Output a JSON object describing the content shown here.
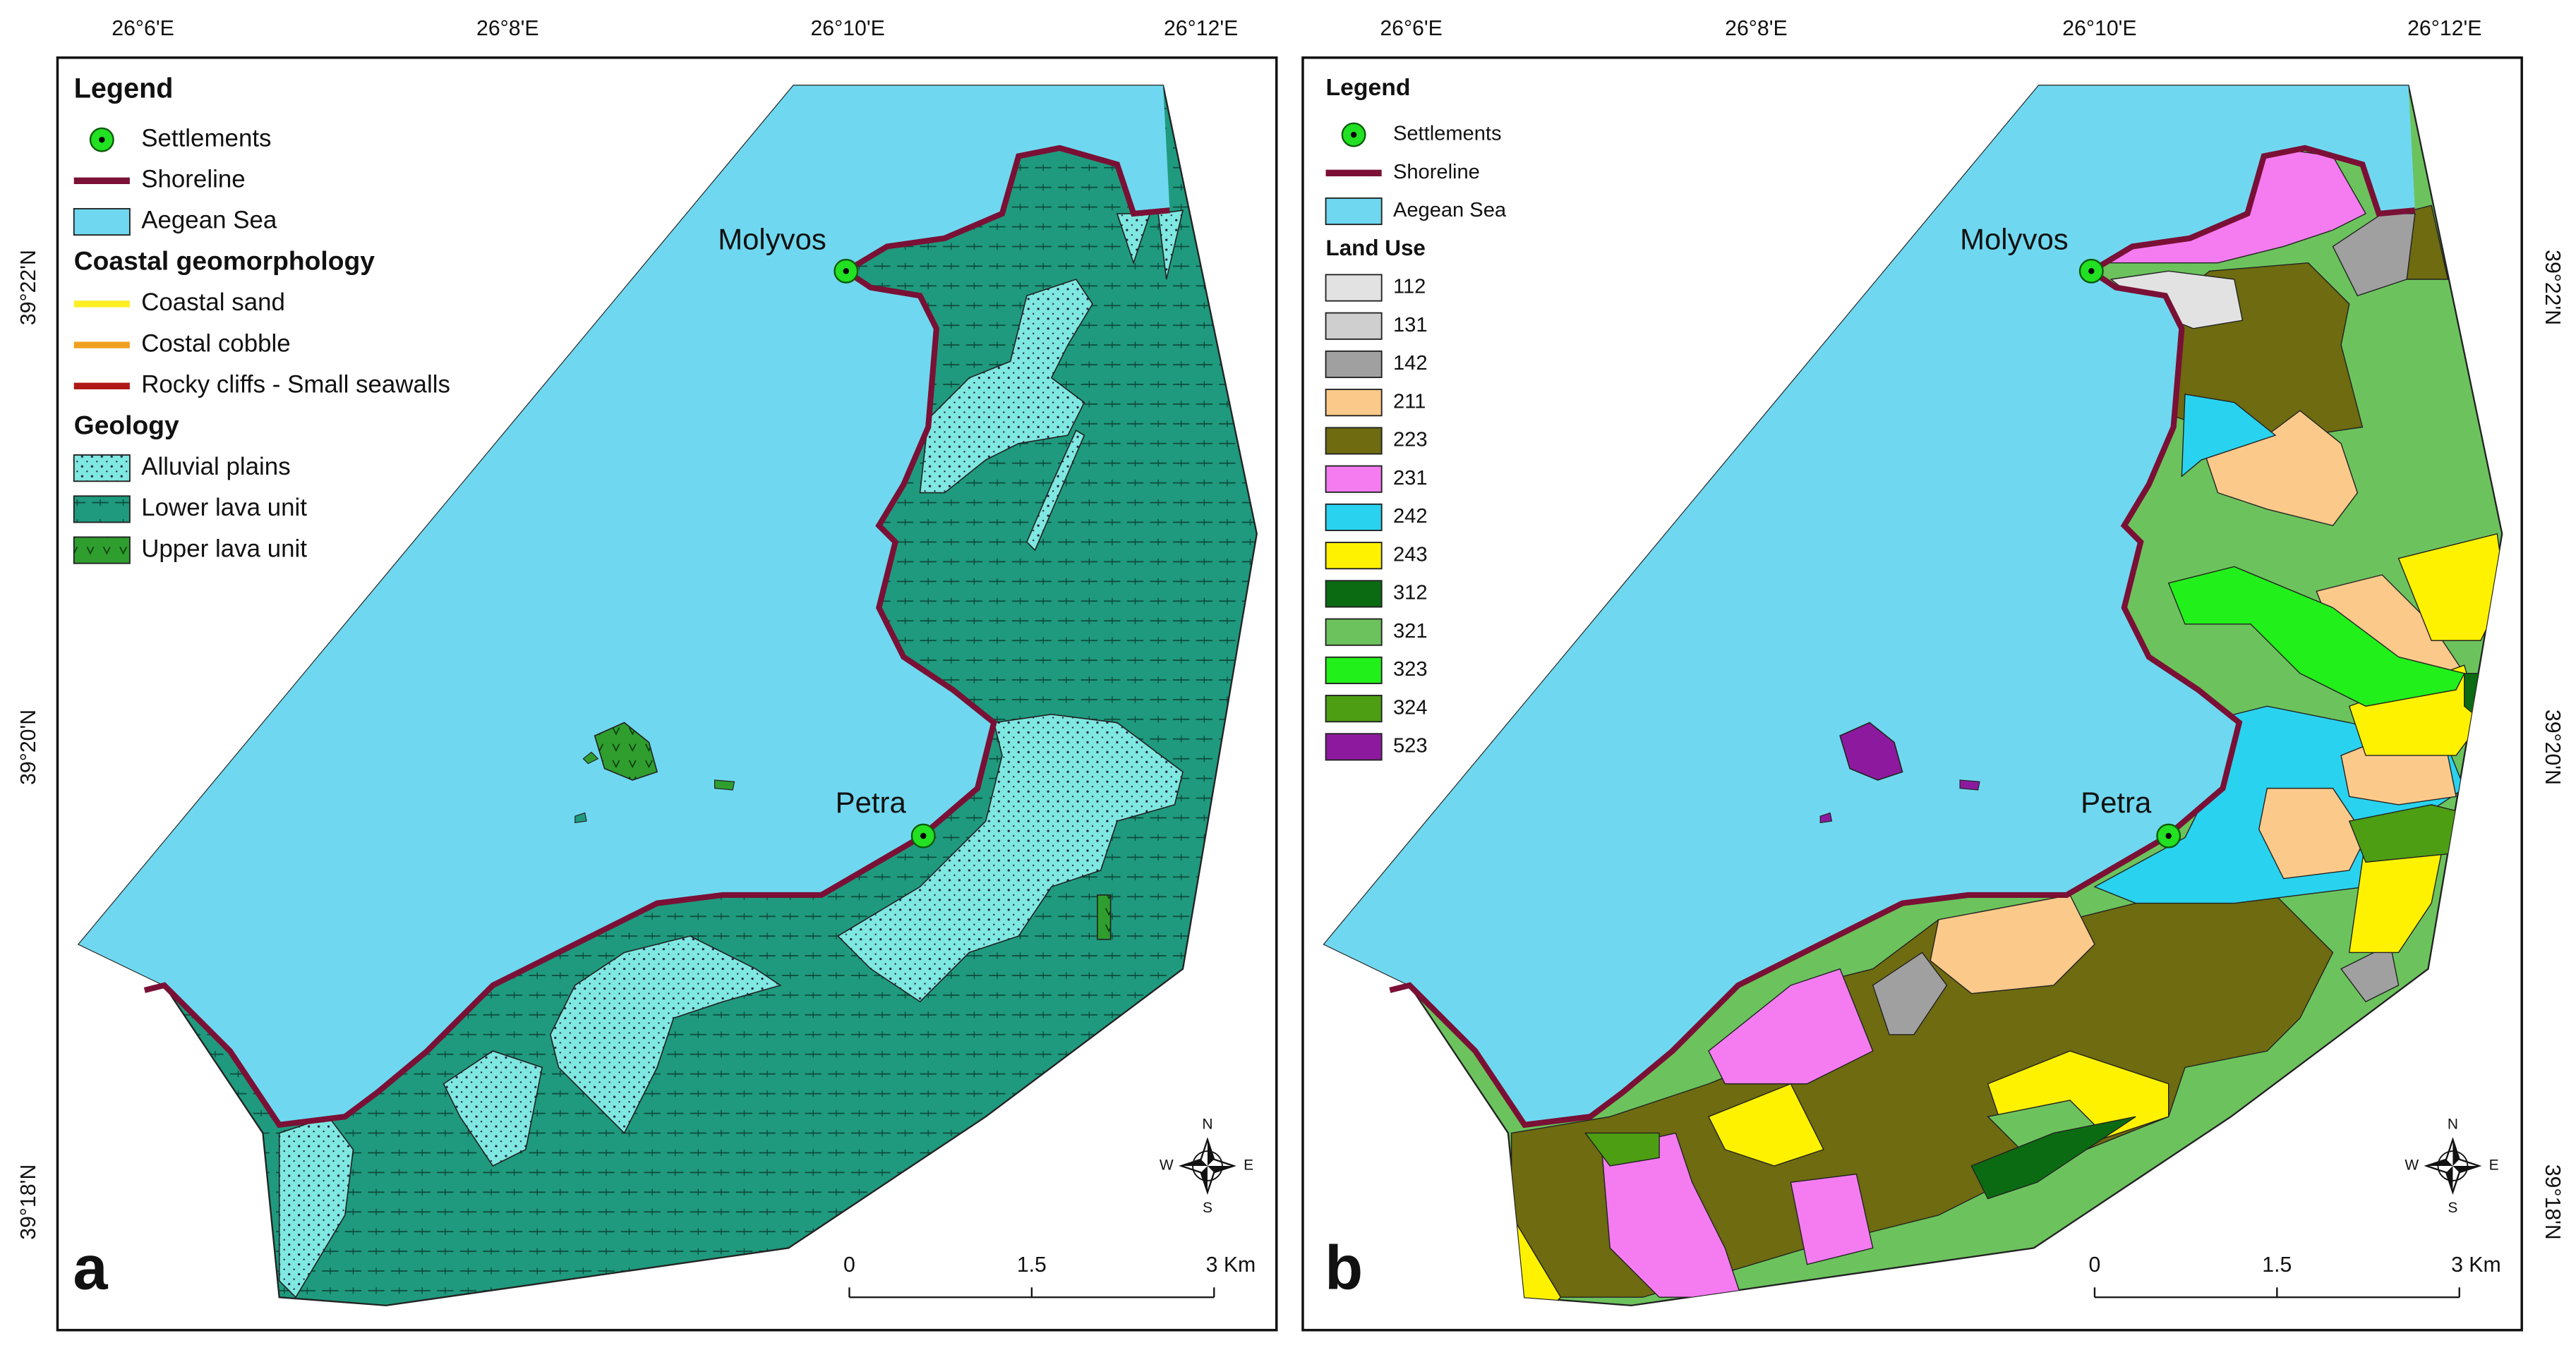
{
  "panels": [
    {
      "label": "a",
      "top_labels": [
        "26°6'E",
        "26°8'E",
        "26°10'E",
        "26°12'E"
      ],
      "side_labels": [
        "39°22'N",
        "39°20'N",
        "39°18'N"
      ],
      "places": [
        "Molyvos",
        "Petra"
      ],
      "scale_labels": [
        "0",
        "1.5",
        "3 Km"
      ],
      "compass": [
        "N",
        "S",
        "W",
        "E"
      ],
      "legend": {
        "title": "Legend",
        "items": [
          {
            "label": "Settlements",
            "symbol": "point",
            "color": "#22e022"
          },
          {
            "label": "Shoreline",
            "symbol": "line",
            "color": "#7a1035"
          },
          {
            "label": "Aegean Sea",
            "symbol": "box",
            "color": "#6fd8f0"
          },
          {
            "label": "Coastal geomorphology",
            "symbol": "heading"
          },
          {
            "label": "Coastal sand",
            "symbol": "line",
            "color": "#ffee22"
          },
          {
            "label": "Costal cobble",
            "symbol": "line",
            "color": "#f0a020"
          },
          {
            "label": "Rocky cliffs - Small seawalls",
            "symbol": "line",
            "color": "#b01818"
          },
          {
            "label": "Geology",
            "symbol": "heading"
          },
          {
            "label": "Alluvial plains",
            "symbol": "dots",
            "color": "#7fe8e0"
          },
          {
            "label": "Lower lava unit",
            "symbol": "lava",
            "color": "#1f9a7e"
          },
          {
            "label": "Upper lava unit",
            "symbol": "upper",
            "color": "#2f9e2f"
          }
        ]
      }
    },
    {
      "label": "b",
      "top_labels": [
        "26°6'E",
        "26°8'E",
        "26°10'E",
        "26°12'E"
      ],
      "side_labels": [
        "39°22'N",
        "39°20'N",
        "39°18'N"
      ],
      "places": [
        "Molyvos",
        "Petra"
      ],
      "scale_labels": [
        "0",
        "1.5",
        "3 Km"
      ],
      "compass": [
        "N",
        "S",
        "W",
        "E"
      ],
      "legend": {
        "title": "Legend",
        "items": [
          {
            "label": "Settlements",
            "symbol": "point",
            "color": "#22e022"
          },
          {
            "label": "Shoreline",
            "symbol": "line",
            "color": "#7a1035"
          },
          {
            "label": "Aegean Sea",
            "symbol": "box",
            "color": "#6fd8f0"
          },
          {
            "label": "Land Use",
            "symbol": "heading"
          },
          {
            "label": "112",
            "symbol": "box",
            "color": "#e2e2e2"
          },
          {
            "label": "131",
            "symbol": "box",
            "color": "#cfcfcf"
          },
          {
            "label": "142",
            "symbol": "box",
            "color": "#a0a0a0"
          },
          {
            "label": "211",
            "symbol": "box",
            "color": "#fbc98a"
          },
          {
            "label": "223",
            "symbol": "box",
            "color": "#6e6b10"
          },
          {
            "label": "231",
            "symbol": "box",
            "color": "#f47cf0"
          },
          {
            "label": "242",
            "symbol": "box",
            "color": "#29d3f0"
          },
          {
            "label": "243",
            "symbol": "box",
            "color": "#fff200"
          },
          {
            "label": "312",
            "symbol": "box",
            "color": "#0b6b12"
          },
          {
            "label": "321",
            "symbol": "box",
            "color": "#6cc35d"
          },
          {
            "label": "323",
            "symbol": "box",
            "color": "#22f01a"
          },
          {
            "label": "324",
            "symbol": "box",
            "color": "#4d9e12"
          },
          {
            "label": "523",
            "symbol": "box",
            "color": "#8d1a9e"
          }
        ]
      }
    }
  ]
}
